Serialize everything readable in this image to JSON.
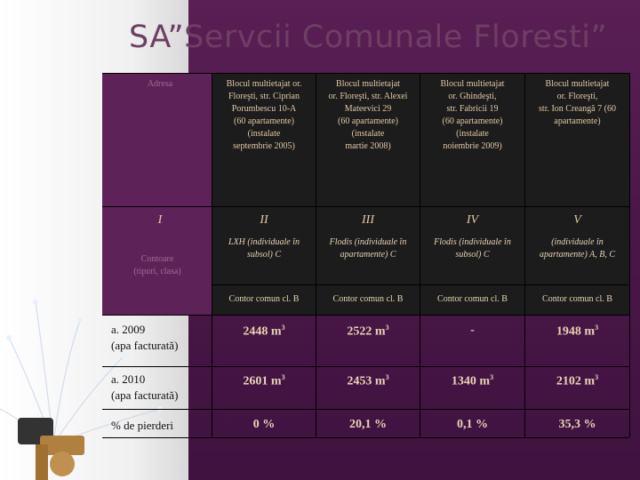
{
  "title": "SA”Servcii Comunale Floresti”",
  "header": {
    "col0": "Adresa",
    "col1": [
      "Blocul multietajat or.",
      "Floreşti, str. Ciprian",
      "Porumbescu 10-A",
      "(60 apartamente)",
      "(instalate",
      "septembrie 2005)"
    ],
    "col2": [
      "Blocul multietajat",
      "or. Floreşti, str. Alexei",
      "Mateevici 29",
      "(60 apartamente)",
      "(instalate",
      "martie 2008)"
    ],
    "col3": [
      "Blocul multietajat",
      "or. Ghindeşti,",
      "str. Fabricii 19",
      "(60 apartamente)",
      "(instalate",
      "noiembrie 2009)"
    ],
    "col4": [
      "Blocul multietajat",
      "or. Floreşti,",
      "str. Ion Creangă 7 (60",
      "apartamente)"
    ]
  },
  "roman": [
    "I",
    "II",
    "III",
    "IV",
    "V"
  ],
  "contor_label": [
    "Contoare",
    "(tipuri, clasa)"
  ],
  "contor_row1": [
    [
      "LXH (individuale în",
      "subsol) C"
    ],
    [
      "Flodis (individuale în",
      "apartamente) C"
    ],
    [
      "Flodis (individuale în",
      "subsol) C"
    ],
    [
      "(individuale în",
      "apartamente) A, B, C"
    ]
  ],
  "contor_row2": [
    "Contor comun cl. B",
    "Contor comun cl. B",
    "Contor comun cl. B",
    "Contor comun cl. B"
  ],
  "rows": [
    {
      "label": [
        "a. 2009",
        "(apa facturată)"
      ],
      "values": [
        "2448",
        "2522",
        "-",
        "1948"
      ],
      "unit": "m",
      "sup": "3"
    },
    {
      "label": [
        "a. 2010",
        "(apa facturată)"
      ],
      "values": [
        "2601",
        "2453",
        "1340",
        "2102"
      ],
      "unit": "m",
      "sup": "3"
    },
    {
      "label": [
        "% de pierderi"
      ],
      "values": [
        "0 %",
        "20,1 %",
        "0,1 %",
        "35,3 %"
      ]
    }
  ]
}
